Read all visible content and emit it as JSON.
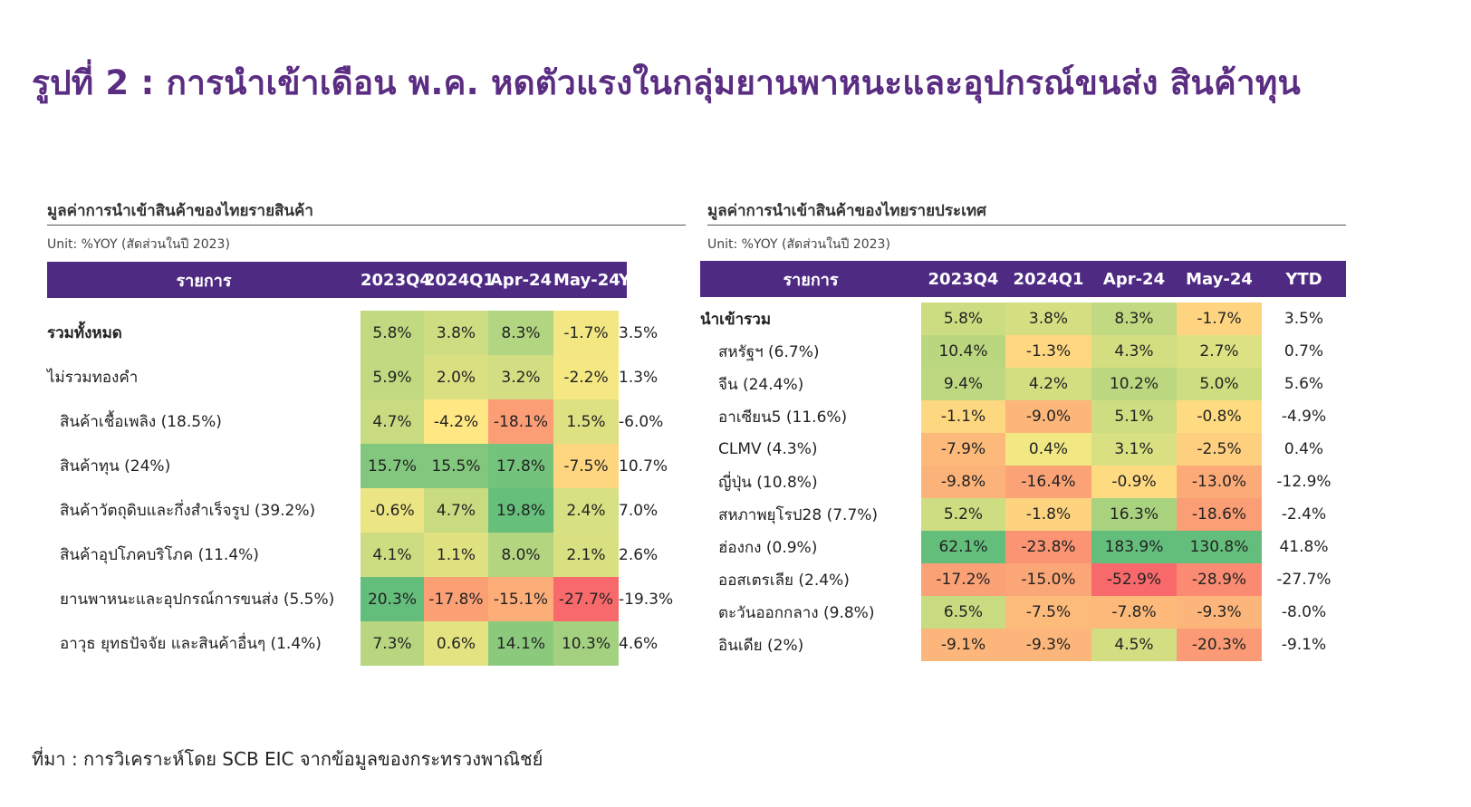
{
  "title": "รูปที่ 2 : การนำเข้าเดือน พ.ค. หดตัวแรงในกลุ่มยานพาหนะและอุปกรณ์ขนส่ง สินค้าทุน",
  "source": "ที่มา : การวิเคราะห์โดย SCB EIC จากข้อมูลของกระทรวงพาณิชย์",
  "colors": {
    "header_bg": "#4e2a83",
    "title": "#5b2d82",
    "scale_low": "#f8696b",
    "scale_mid": "#ffeb84",
    "scale_high": "#63be7b"
  },
  "chart_data": [
    {
      "type": "table",
      "title": "มูลค่าการนำเข้าสินค้าของไทยรายสินค้า",
      "unit": "Unit: %YOY (สัดส่วนในปี 2023)",
      "columns": [
        "รายการ",
        "2023Q4",
        "2024Q1",
        "Apr-24",
        "May-24",
        "YTD"
      ],
      "rows": [
        {
          "label": "รวมทั้งหมด",
          "bold": true,
          "indent": 0,
          "values": [
            5.8,
            3.8,
            8.3,
            -1.7
          ],
          "ytd": 3.5
        },
        {
          "label": "ไม่รวมทองคำ",
          "bold": false,
          "indent": 0,
          "values": [
            5.9,
            2.0,
            3.2,
            -2.2
          ],
          "ytd": 1.3
        },
        {
          "label": "สินค้าเชื้อเพลิง (18.5%)",
          "bold": false,
          "indent": 1,
          "values": [
            4.7,
            -4.2,
            -18.1,
            1.5
          ],
          "ytd": -6.0
        },
        {
          "label": "สินค้าทุน (24%)",
          "bold": false,
          "indent": 1,
          "values": [
            15.7,
            15.5,
            17.8,
            -7.5
          ],
          "ytd": 10.7
        },
        {
          "label": "สินค้าวัตถุดิบและกึ่งสำเร็จรูป (39.2%)",
          "bold": false,
          "indent": 1,
          "values": [
            -0.6,
            4.7,
            19.8,
            2.4
          ],
          "ytd": 7.0
        },
        {
          "label": "สินค้าอุปโภคบริโภค (11.4%)",
          "bold": false,
          "indent": 1,
          "values": [
            4.1,
            1.1,
            8.0,
            2.1
          ],
          "ytd": 2.6
        },
        {
          "label": "ยานพาหนะและอุปกรณ์การขนส่ง (5.5%)",
          "bold": false,
          "indent": 1,
          "values": [
            20.3,
            -17.8,
            -15.1,
            -27.7
          ],
          "ytd": -19.3
        },
        {
          "label": "อาวุธ ยุทธปัจจัย และสินค้าอื่นๆ (1.4%)",
          "bold": false,
          "indent": 1,
          "values": [
            7.3,
            0.6,
            14.1,
            10.3
          ],
          "ytd": 4.6
        }
      ]
    },
    {
      "type": "table",
      "title": "มูลค่าการนำเข้าสินค้าของไทยรายประเทศ",
      "unit": "Unit: %YOY (สัดส่วนในปี 2023)",
      "columns": [
        "รายการ",
        "2023Q4",
        "2024Q1",
        "Apr-24",
        "May-24",
        "YTD"
      ],
      "rows": [
        {
          "label": "นำเข้ารวม",
          "bold": true,
          "indent": 0,
          "values": [
            5.8,
            3.8,
            8.3,
            -1.7
          ],
          "ytd": 3.5
        },
        {
          "label": "สหรัฐฯ (6.7%)",
          "bold": false,
          "indent": 1,
          "values": [
            10.4,
            -1.3,
            4.3,
            2.7
          ],
          "ytd": 0.7
        },
        {
          "label": "จีน (24.4%)",
          "bold": false,
          "indent": 1,
          "values": [
            9.4,
            4.2,
            10.2,
            5.0
          ],
          "ytd": 5.6
        },
        {
          "label": "อาเซียน5 (11.6%)",
          "bold": false,
          "indent": 1,
          "values": [
            -1.1,
            -9.0,
            5.1,
            -0.8
          ],
          "ytd": -4.9
        },
        {
          "label": "CLMV (4.3%)",
          "bold": false,
          "indent": 1,
          "values": [
            -7.9,
            0.4,
            3.1,
            -2.5
          ],
          "ytd": 0.4
        },
        {
          "label": "ญี่ปุ่น (10.8%)",
          "bold": false,
          "indent": 1,
          "values": [
            -9.8,
            -16.4,
            -0.9,
            -13.0
          ],
          "ytd": -12.9
        },
        {
          "label": "สหภาพยุโรป28 (7.7%)",
          "bold": false,
          "indent": 1,
          "values": [
            5.2,
            -1.8,
            16.3,
            -18.6
          ],
          "ytd": -2.4
        },
        {
          "label": "ฮ่องกง (0.9%)",
          "bold": false,
          "indent": 1,
          "values": [
            62.1,
            -23.8,
            183.9,
            130.8
          ],
          "ytd": 41.8
        },
        {
          "label": "ออสเตรเลีย (2.4%)",
          "bold": false,
          "indent": 1,
          "values": [
            -17.2,
            -15.0,
            -52.9,
            -28.9
          ],
          "ytd": -27.7
        },
        {
          "label": "ตะวันออกกลาง (9.8%)",
          "bold": false,
          "indent": 1,
          "values": [
            6.5,
            -7.5,
            -7.8,
            -9.3
          ],
          "ytd": -8.0
        },
        {
          "label": "อินเดีย (2%)",
          "bold": false,
          "indent": 1,
          "values": [
            -9.1,
            -9.3,
            4.5,
            -20.3
          ],
          "ytd": -9.1
        }
      ]
    }
  ]
}
